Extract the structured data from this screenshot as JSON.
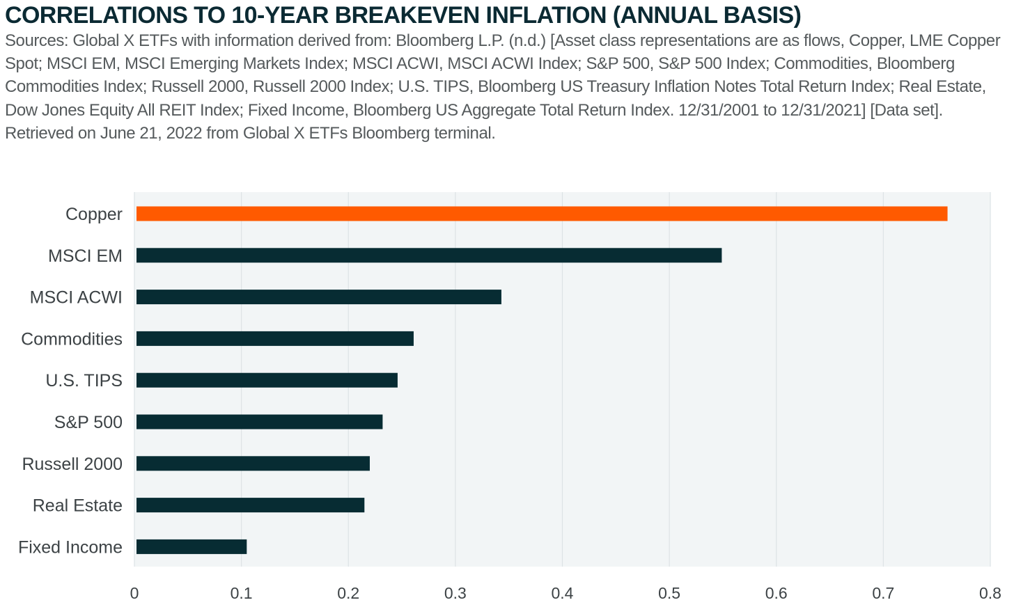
{
  "title": "CORRELATIONS TO 10-YEAR BREAKEVEN INFLATION (ANNUAL BASIS)",
  "sources": "Sources: Global X ETFs with information derived from: Bloomberg L.P. (n.d.) [Asset class representations are as flows, Copper, LME Copper Spot; MSCI EM, MSCI Emerging Markets Index; MSCI ACWI, MSCI ACWI Index; S&P 500, S&P 500 Index; Commodities, Bloomberg Commodities Index; Russell 2000, Russell 2000 Index; U.S. TIPS, Bloomberg US Treasury Inflation Notes Total Return Index; Real Estate, Dow Jones Equity All REIT Index; Fixed Income, Bloomberg US Aggregate Total Return Index. 12/31/2001 to 12/31/2021] [Data set]. Retrieved on June 21, 2022 from Global X ETFs Bloomberg terminal.",
  "colors": {
    "highlight": "#ff5a00",
    "bar": "#072c33",
    "plot_background": "#f2f5f6",
    "gridline": "#dde3e5",
    "label_text": "#3c4245",
    "title_text": "#0b2a33"
  },
  "chart_data": {
    "type": "bar",
    "orientation": "horizontal",
    "categories": [
      "Copper",
      "MSCI EM",
      "MSCI ACWI",
      "Commodities",
      "U.S. TIPS",
      "S&P 500",
      "Russell 2000",
      "Real Estate",
      "Fixed Income"
    ],
    "values": [
      0.76,
      0.549,
      0.343,
      0.261,
      0.246,
      0.232,
      0.22,
      0.215,
      0.105
    ],
    "highlight_category": "Copper",
    "xlim": [
      0,
      0.8
    ],
    "x_ticks": [
      0,
      0.1,
      0.2,
      0.3,
      0.4,
      0.5,
      0.6,
      0.7,
      0.8
    ],
    "x_tick_labels": [
      "0",
      "0.1",
      "0.2",
      "0.3",
      "0.4",
      "0.5",
      "0.6",
      "0.7",
      "0.8"
    ],
    "grid": "vertical",
    "legend": "none",
    "xlabel": "",
    "ylabel": ""
  }
}
